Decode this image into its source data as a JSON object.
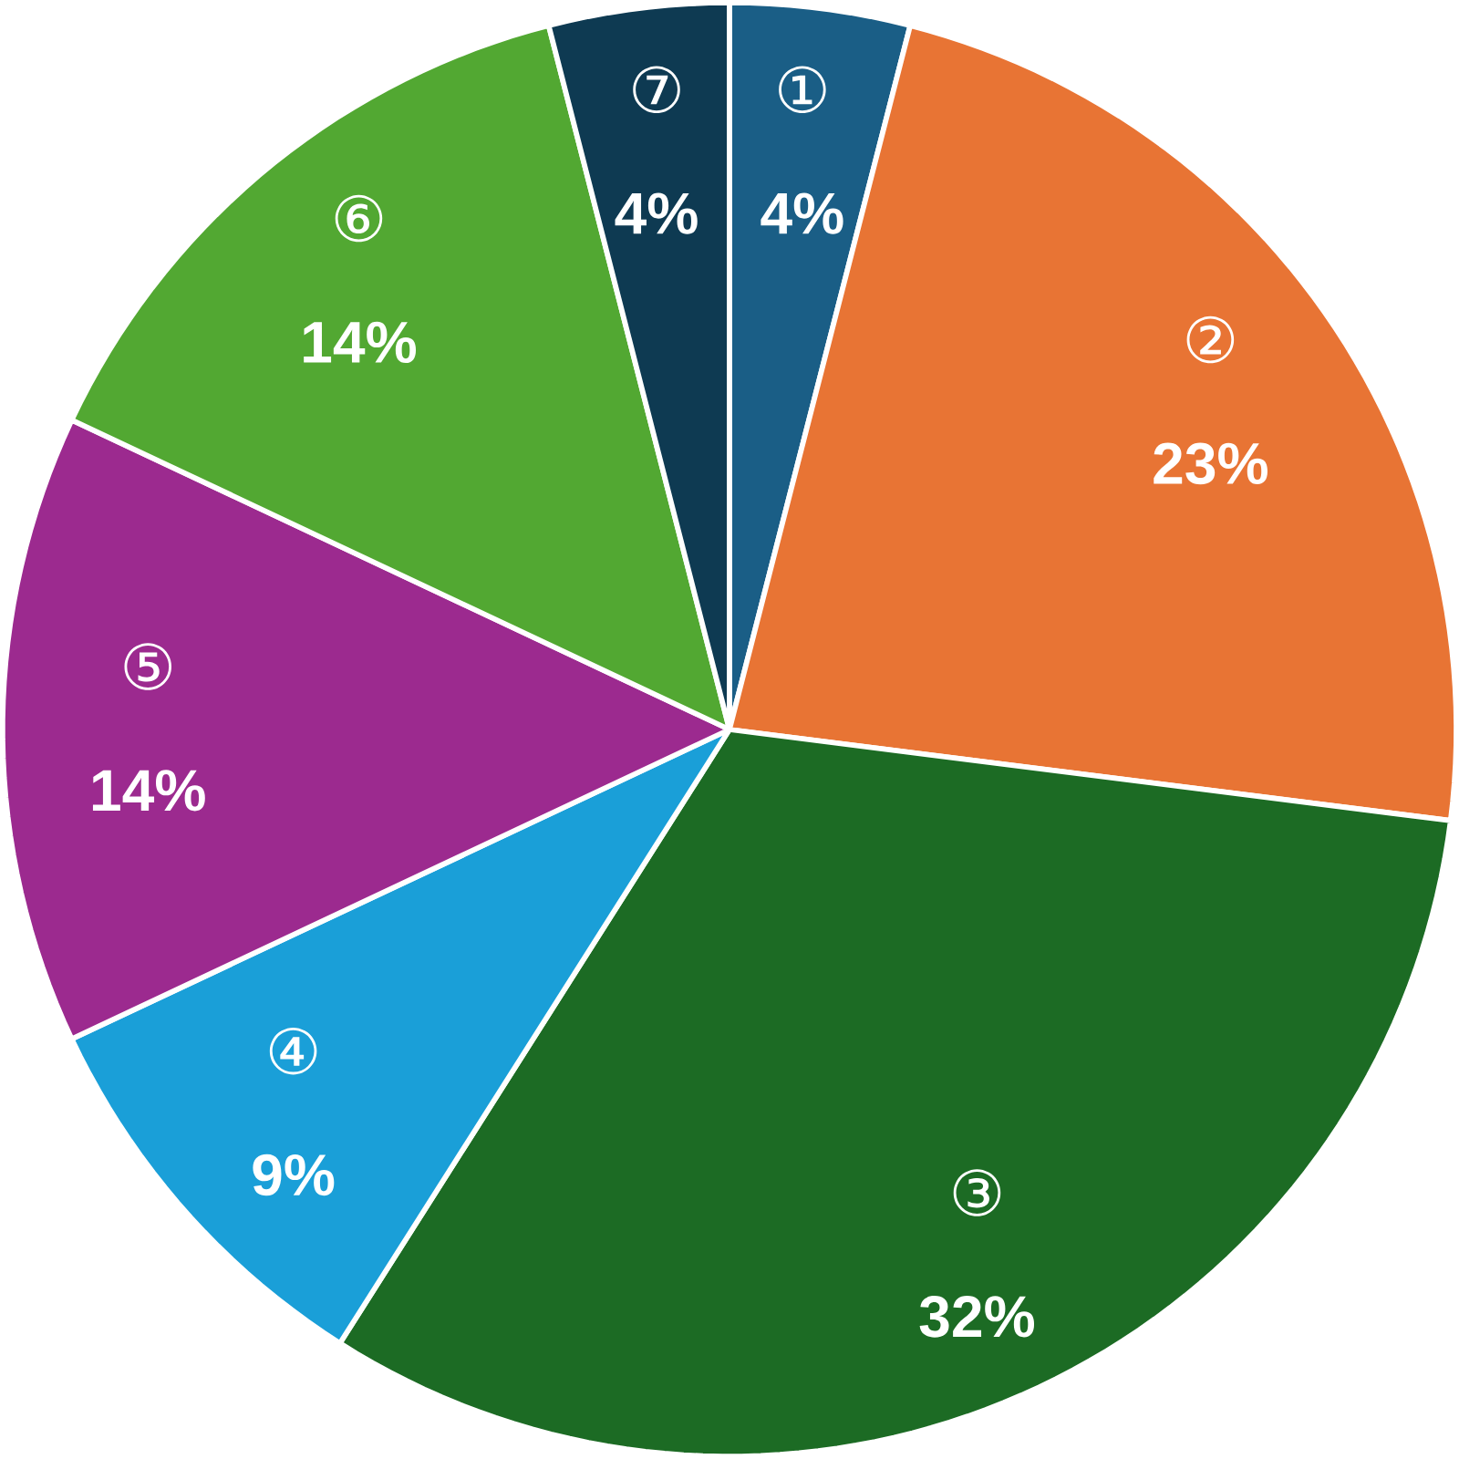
{
  "chart_data": {
    "type": "pie",
    "categories": [
      "①",
      "②",
      "③",
      "④",
      "⑤",
      "⑥",
      "⑦"
    ],
    "values": [
      4,
      23,
      32,
      9,
      14,
      14,
      4
    ],
    "value_labels": [
      "4%",
      "23%",
      "32%",
      "9%",
      "14%",
      "14%",
      "4%"
    ],
    "colors": [
      "#1a5e86",
      "#e87434",
      "#1c6b24",
      "#1a9fd8",
      "#9c2a8f",
      "#52a832",
      "#0e3a52"
    ]
  }
}
